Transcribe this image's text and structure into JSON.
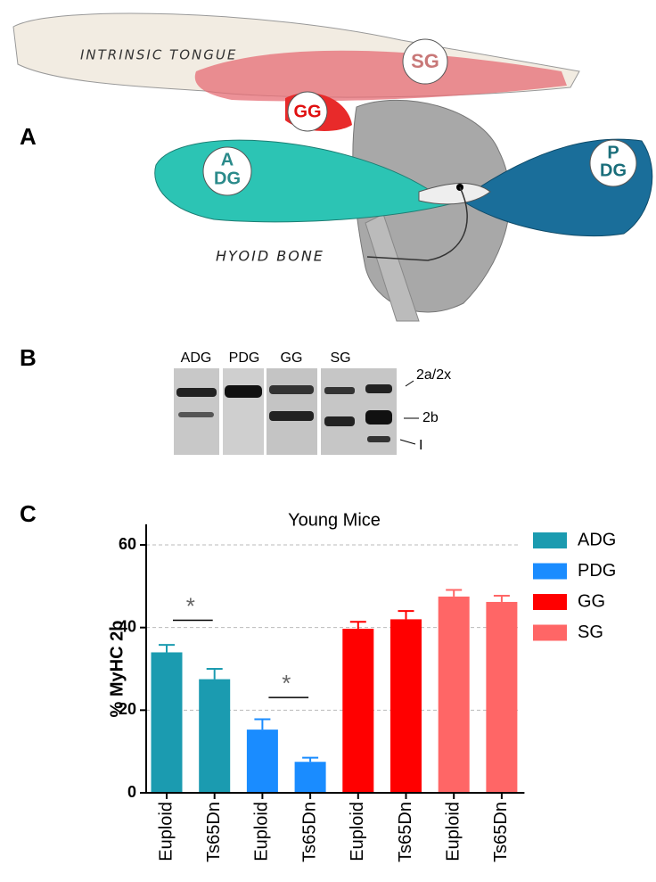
{
  "panel_labels": [
    "A",
    "B",
    "C"
  ],
  "illustration": {
    "tongue": "INTRINSIC TONGUE",
    "sg": "SG",
    "gg": "GG",
    "adg": [
      "A",
      "DG"
    ],
    "pdg": [
      "P",
      "DG"
    ],
    "hyoid": "HYOID BONE"
  },
  "gel": {
    "lanes": [
      "ADG",
      "PDG",
      "GG",
      "SG"
    ],
    "bands": [
      "2a/2x",
      "2b",
      "I"
    ]
  },
  "chart_data": {
    "type": "bar",
    "title": "Young Mice",
    "y_label": "% MyHC 2b",
    "categories": [
      "Euploid",
      "Ts65Dn",
      "Euploid",
      "Ts65Dn",
      "Euploid",
      "Ts65Dn",
      "Euploid",
      "Ts65Dn"
    ],
    "series": [
      {
        "name": "ADG",
        "color": "#1b9bb0",
        "values": [
          34,
          27.5,
          null,
          null,
          null,
          null,
          null,
          null
        ],
        "errors": [
          1.8,
          2.5,
          null,
          null,
          null,
          null,
          null,
          null
        ]
      },
      {
        "name": "PDG",
        "color": "#1a8cff",
        "values": [
          null,
          null,
          15.3,
          7.5,
          null,
          null,
          null,
          null
        ],
        "errors": [
          null,
          null,
          2.5,
          1,
          null,
          null,
          null,
          null
        ]
      },
      {
        "name": "GG",
        "color": "#ff0000",
        "values": [
          null,
          null,
          null,
          null,
          39.7,
          42,
          null,
          null
        ],
        "errors": [
          null,
          null,
          null,
          null,
          1.7,
          2,
          null,
          null
        ]
      },
      {
        "name": "SG",
        "color": "#ff6666",
        "values": [
          null,
          null,
          null,
          null,
          null,
          null,
          47.5,
          46.2
        ],
        "errors": [
          null,
          null,
          null,
          null,
          null,
          null,
          1.6,
          1.5
        ]
      }
    ],
    "annotations": [
      "*",
      "*"
    ],
    "ylim": [
      0,
      65
    ],
    "yticks": [
      0,
      20,
      40,
      60
    ],
    "grid": true,
    "legend": "right"
  }
}
